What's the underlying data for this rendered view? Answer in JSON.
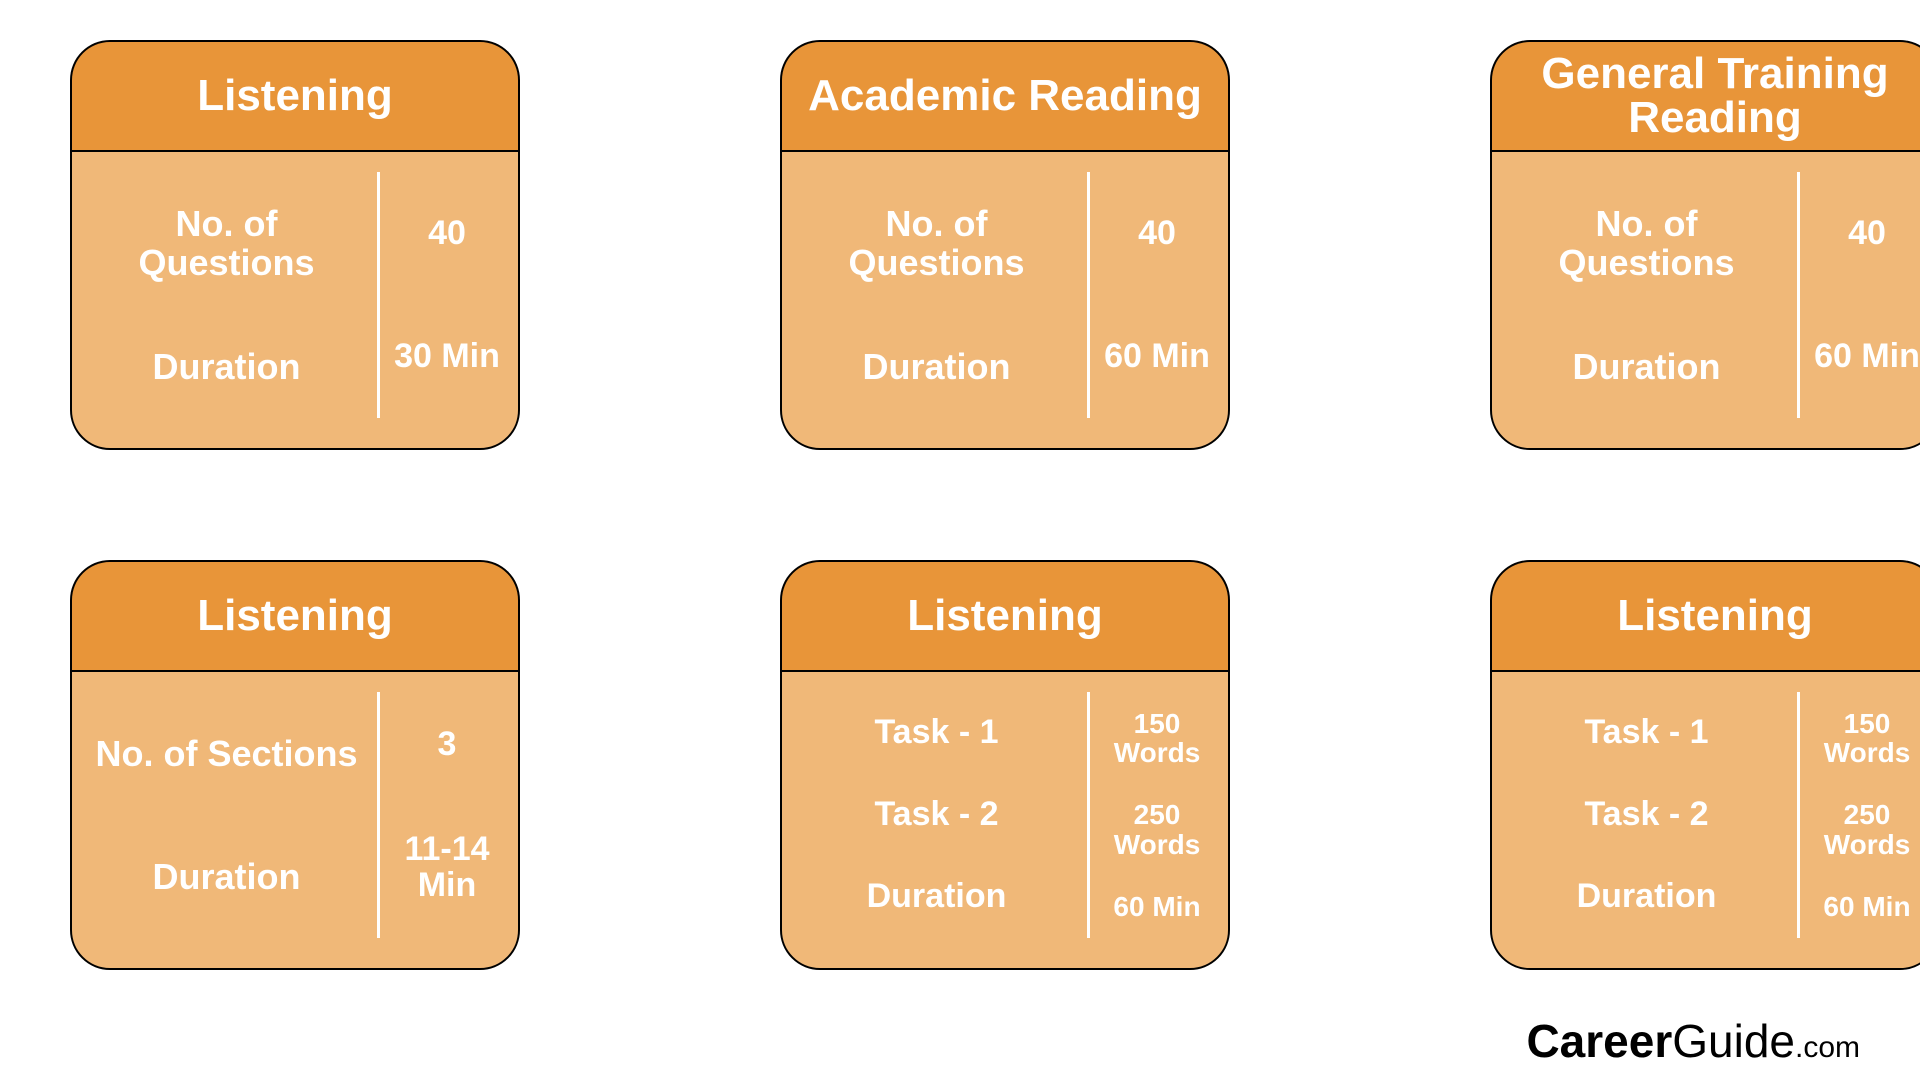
{
  "colors": {
    "header_bg": "#e89539",
    "body_bg": "#f0b878",
    "text": "#ffffff",
    "background": "#ffffff",
    "border": "#000000"
  },
  "cards": [
    {
      "title": "Listening",
      "rows": [
        {
          "label": "No. of Questions",
          "value": "40"
        },
        {
          "label": "Duration",
          "value": "30 Min"
        }
      ],
      "small": false
    },
    {
      "title": "Academic Reading",
      "rows": [
        {
          "label": "No. of Questions",
          "value": "40"
        },
        {
          "label": "Duration",
          "value": "60 Min"
        }
      ],
      "small": false
    },
    {
      "title": "General Training Reading",
      "rows": [
        {
          "label": "No. of Questions",
          "value": "40"
        },
        {
          "label": "Duration",
          "value": "60 Min"
        }
      ],
      "small": false
    },
    {
      "title": "Listening",
      "rows": [
        {
          "label": "No. of Sections",
          "value": "3"
        },
        {
          "label": "Duration",
          "value": "11-14 Min"
        }
      ],
      "small": false
    },
    {
      "title": "Listening",
      "rows": [
        {
          "label": "Task - 1",
          "value": "150 Words"
        },
        {
          "label": "Task - 2",
          "value": "250 Words"
        },
        {
          "label": "Duration",
          "value": "60 Min"
        }
      ],
      "small": true
    },
    {
      "title": "Listening",
      "rows": [
        {
          "label": "Task - 1",
          "value": "150 Words"
        },
        {
          "label": "Task - 2",
          "value": "250 Words"
        },
        {
          "label": "Duration",
          "value": "60 Min"
        }
      ],
      "small": true
    }
  ],
  "logo": {
    "career": "Career",
    "guide": "Guide",
    "dotcom": ".com"
  }
}
